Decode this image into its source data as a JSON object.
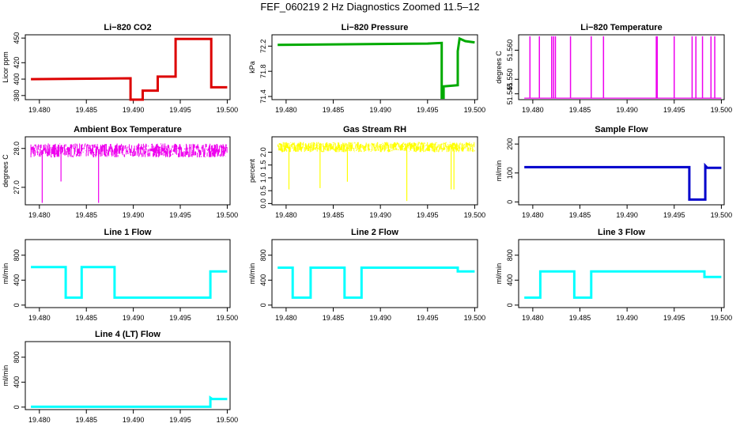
{
  "title": "FEF_060219  2 Hz Diagnostics Zoomed 11.5–12",
  "chart_data": [
    {
      "type": "line",
      "title": "Li−820 CO2",
      "ylabel": "Licor ppm",
      "color": "#dd0000",
      "x_ticks": [
        "19.480",
        "19.485",
        "19.490",
        "19.495",
        "19.500"
      ],
      "y_ticks": [
        {
          "v": 380,
          "label": "380"
        },
        {
          "v": 400,
          "label": "400"
        },
        {
          "v": 420,
          "label": "420"
        },
        {
          "v": 450,
          "label": "450"
        }
      ],
      "xlim": [
        19.4785,
        19.5003
      ],
      "ylim": [
        375,
        454
      ],
      "series": [
        {
          "x": [
            19.4791,
            19.4897,
            19.4897,
            19.491,
            19.491,
            19.4926,
            19.4926,
            19.4945,
            19.4945,
            19.4983,
            19.4983,
            19.5
          ],
          "y": [
            400,
            401,
            375,
            375,
            386,
            386,
            403,
            403,
            449,
            449,
            390,
            390
          ]
        }
      ]
    },
    {
      "type": "line",
      "title": "Li−820 Pressure",
      "ylabel": "kPa",
      "color": "#00aa00",
      "x_ticks": [
        "19.480",
        "19.485",
        "19.490",
        "19.495",
        "19.500"
      ],
      "y_ticks": [
        {
          "v": 71.4,
          "label": "71.4"
        },
        {
          "v": 71.8,
          "label": "71.8"
        },
        {
          "v": 72.2,
          "label": "72.2"
        }
      ],
      "xlim": [
        19.4785,
        19.5003
      ],
      "ylim": [
        71.35,
        72.38
      ],
      "series": [
        {
          "x": [
            19.4791,
            19.495,
            19.4965,
            19.4965,
            19.4967,
            19.4967,
            19.4982,
            19.4982,
            19.4984,
            19.499,
            19.5
          ],
          "y": [
            72.22,
            72.24,
            72.25,
            71.38,
            71.38,
            71.56,
            71.58,
            72.12,
            72.32,
            72.28,
            72.26
          ]
        }
      ]
    },
    {
      "type": "line",
      "title": "Li−820 Temperature",
      "ylabel": "degrees C",
      "color": "#ee00ee",
      "x_ticks": [
        "19.480",
        "19.485",
        "19.490",
        "19.495",
        "19.500"
      ],
      "y_ticks": [
        {
          "v": 51.545,
          "label": "51.545"
        },
        {
          "v": 51.55,
          "label": "51.550"
        },
        {
          "v": 51.56,
          "label": "51.560"
        }
      ],
      "xlim": [
        19.4785,
        19.5003
      ],
      "ylim": [
        51.543,
        51.5653
      ],
      "baseline": 51.5435,
      "spikes": [
        19.4797,
        19.4807,
        19.482,
        19.4822,
        19.4824,
        19.484,
        19.4862,
        19.4875,
        19.4931,
        19.4932,
        19.495,
        19.4969,
        19.4973,
        19.498,
        19.4989,
        19.4993
      ],
      "spike_top": 51.5648
    },
    {
      "type": "line",
      "title": "Ambient Box Temperature",
      "ylabel": "degrees C",
      "color": "#ee00ee",
      "x_ticks": [
        "19.480",
        "19.485",
        "19.490",
        "19.495",
        "19.500"
      ],
      "y_ticks": [
        {
          "v": 27.0,
          "label": "27.0"
        },
        {
          "v": 28.0,
          "label": "28.0"
        }
      ],
      "xlim": [
        19.4785,
        19.5003
      ],
      "ylim": [
        26.55,
        28.3
      ],
      "noise": {
        "x0": 19.4791,
        "x1": 19.5,
        "mean": 27.95,
        "amp": 0.18
      },
      "dips": [
        {
          "x": 19.4803,
          "y": 26.6
        },
        {
          "x": 19.4823,
          "y": 27.15
        },
        {
          "x": 19.4863,
          "y": 26.6
        }
      ]
    },
    {
      "type": "line",
      "title": "Gas Stream RH",
      "ylabel": "percent",
      "color": "#ffff00",
      "x_ticks": [
        "19.480",
        "19.485",
        "19.490",
        "19.495",
        "19.500"
      ],
      "y_ticks": [
        {
          "v": 0.0,
          "label": "0.0"
        },
        {
          "v": 0.5,
          "label": "0.5"
        },
        {
          "v": 1.0,
          "label": "1.0"
        },
        {
          "v": 1.5,
          "label": "1.5"
        },
        {
          "v": 2.0,
          "label": "2.0"
        }
      ],
      "xlim": [
        19.4785,
        19.5003
      ],
      "ylim": [
        -0.05,
        2.6
      ],
      "noise": {
        "x0": 19.4791,
        "x1": 19.5,
        "mean": 2.2,
        "amp": 0.2
      },
      "dips": [
        {
          "x": 19.4803,
          "y": 0.55
        },
        {
          "x": 19.4836,
          "y": 0.6
        },
        {
          "x": 19.4865,
          "y": 0.85
        },
        {
          "x": 19.4928,
          "y": 0.1
        },
        {
          "x": 19.4975,
          "y": 0.55
        },
        {
          "x": 19.4978,
          "y": 0.55
        }
      ]
    },
    {
      "type": "line",
      "title": "Sample Flow",
      "ylabel": "ml/min",
      "color": "#0000cc",
      "x_ticks": [
        "19.480",
        "19.485",
        "19.490",
        "19.495",
        "19.500"
      ],
      "y_ticks": [
        {
          "v": 0,
          "label": "0"
        },
        {
          "v": 100,
          "label": "100"
        },
        {
          "v": 200,
          "label": "200"
        }
      ],
      "xlim": [
        19.4785,
        19.5003
      ],
      "ylim": [
        -10,
        225
      ],
      "series": [
        {
          "x": [
            19.4791,
            19.4966,
            19.4966,
            19.4983,
            19.4983,
            19.4985,
            19.5
          ],
          "y": [
            120,
            120,
            8,
            8,
            125,
            118,
            118
          ]
        }
      ]
    },
    {
      "type": "line",
      "title": "Line 1 Flow",
      "ylabel": "ml/min",
      "color": "#00ffff",
      "x_ticks": [
        "19.480",
        "19.485",
        "19.490",
        "19.495",
        "19.500"
      ],
      "y_ticks": [
        {
          "v": 0,
          "label": "0"
        },
        {
          "v": 400,
          "label": "400"
        },
        {
          "v": 800,
          "label": "800"
        }
      ],
      "xlim": [
        19.4785,
        19.5003
      ],
      "ylim": [
        -40,
        1050
      ],
      "series": [
        {
          "x": [
            19.4791,
            19.4828,
            19.4828,
            19.4845,
            19.4845,
            19.488,
            19.488,
            19.4982,
            19.4982,
            19.5
          ],
          "y": [
            610,
            610,
            120,
            120,
            610,
            610,
            120,
            120,
            540,
            540
          ]
        }
      ]
    },
    {
      "type": "line",
      "title": "Line 2 Flow",
      "ylabel": "ml/min",
      "color": "#00ffff",
      "x_ticks": [
        "19.480",
        "19.485",
        "19.490",
        "19.495",
        "19.500"
      ],
      "y_ticks": [
        {
          "v": 0,
          "label": "0"
        },
        {
          "v": 400,
          "label": "400"
        },
        {
          "v": 800,
          "label": "800"
        }
      ],
      "xlim": [
        19.4785,
        19.5003
      ],
      "ylim": [
        -40,
        1050
      ],
      "series": [
        {
          "x": [
            19.4791,
            19.4807,
            19.4807,
            19.4826,
            19.4826,
            19.4862,
            19.4862,
            19.488,
            19.488,
            19.4982,
            19.4982,
            19.5
          ],
          "y": [
            600,
            600,
            120,
            120,
            600,
            600,
            120,
            120,
            600,
            600,
            540,
            540
          ]
        }
      ]
    },
    {
      "type": "line",
      "title": "Line 3 Flow",
      "ylabel": "ml/min",
      "color": "#00ffff",
      "x_ticks": [
        "19.480",
        "19.485",
        "19.490",
        "19.495",
        "19.500"
      ],
      "y_ticks": [
        {
          "v": 0,
          "label": "0"
        },
        {
          "v": 400,
          "label": "400"
        },
        {
          "v": 800,
          "label": "800"
        }
      ],
      "xlim": [
        19.4785,
        19.5003
      ],
      "ylim": [
        -40,
        1050
      ],
      "series": [
        {
          "x": [
            19.4791,
            19.4808,
            19.4808,
            19.4844,
            19.4844,
            19.4862,
            19.4862,
            19.4982,
            19.4982,
            19.5
          ],
          "y": [
            120,
            120,
            540,
            540,
            120,
            120,
            540,
            540,
            450,
            450
          ]
        }
      ]
    },
    {
      "type": "line",
      "title": "Line 4 (LT) Flow",
      "ylabel": "ml/min",
      "color": "#00ffff",
      "x_ticks": [
        "19.480",
        "19.485",
        "19.490",
        "19.495",
        "19.500"
      ],
      "y_ticks": [
        {
          "v": 0,
          "label": "0"
        },
        {
          "v": 400,
          "label": "400"
        },
        {
          "v": 800,
          "label": "800"
        }
      ],
      "xlim": [
        19.4785,
        19.5003
      ],
      "ylim": [
        -40,
        1050
      ],
      "series": [
        {
          "x": [
            19.4791,
            19.4982,
            19.4982,
            19.4984,
            19.5
          ],
          "y": [
            5,
            5,
            150,
            130,
            130
          ]
        }
      ]
    }
  ]
}
